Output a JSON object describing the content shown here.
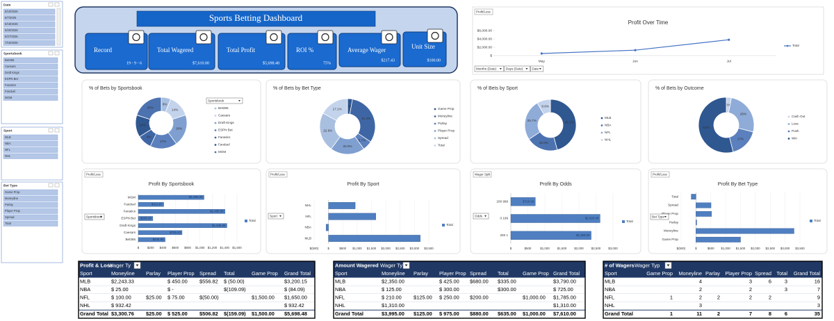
{
  "slicers": [
    {
      "title": "Date",
      "items": [
        "5/10/2025",
        "6/7/2025",
        "6/18/2025",
        "6/20/2025",
        "6/27/2025",
        "7/16/2025"
      ]
    },
    {
      "title": "Sportsbook",
      "items": [
        "Bet365",
        "Caesars",
        "Draft Kings",
        "ESPN Bet",
        "Fanatics",
        "Fanduel",
        "MGM"
      ]
    },
    {
      "title": "Sport",
      "items": [
        "MLB",
        "NBA",
        "NFL",
        "NHL"
      ]
    },
    {
      "title": "Bet Type",
      "items": [
        "Game Prop",
        "Moneyline",
        "Parlay",
        "Player Prop",
        "Spread",
        "Total"
      ]
    }
  ],
  "header": {
    "title": "Sports Betting Dashboard",
    "kpis": [
      {
        "label": "Record",
        "value": "19 - 9 - 6"
      },
      {
        "label": "Total Wagered",
        "value": "$7,610.00"
      },
      {
        "label": "Total Profit",
        "value": "$5,698.48"
      },
      {
        "label": "ROI %",
        "value": "75%"
      },
      {
        "label": "Average Wager",
        "value": "$217.43"
      },
      {
        "label": "Unit Size",
        "value": "$100.00"
      }
    ]
  },
  "chart_data": [
    {
      "type": "line",
      "title": "Profit Over Time",
      "buttons": [
        "Profit/Loss"
      ],
      "filters": [
        "Months (Date)",
        "Days (Date)",
        "Date"
      ],
      "categories": [
        "May",
        "Jun",
        "Jul"
      ],
      "series": [
        {
          "name": "Total",
          "color": "#4472c4",
          "values": [
            500,
            1300,
            3800
          ]
        }
      ],
      "ylim": [
        0,
        6000
      ],
      "yticks": [
        {
          "value": 0,
          "label": "$"
        },
        {
          "value": 2000,
          "label": "$2,000.00"
        },
        {
          "value": 4000,
          "label": "$4,000.00"
        },
        {
          "value": 6000,
          "label": "$6,000.00"
        }
      ]
    },
    {
      "type": "donut",
      "title": "% of Bets by Sportsbook",
      "dropdown": "Sportsbook",
      "categories": [
        "Bet365",
        "Caesars",
        "Draft Kings",
        "ESPN Bet",
        "Fanatics",
        "Fanduel",
        "MGM"
      ],
      "values": [
        6,
        14,
        20,
        17,
        9,
        14,
        20
      ],
      "value_labels": [
        "6%",
        "14%",
        "20%",
        "17%",
        "9%",
        "14%",
        "20%"
      ],
      "colors": [
        "#a9bfe0",
        "#c4d3ec",
        "#7f9fd0",
        "#5b80bd",
        "#3f66a4",
        "#2f5790",
        "#4c72b0"
      ]
    },
    {
      "type": "donut",
      "title": "% of Bets by Bet Type",
      "categories": [
        "Game Prop",
        "Moneyline",
        "Parlay",
        "Player Prop",
        "Spread",
        "Total"
      ],
      "values": [
        2.9,
        31.4,
        5.7,
        20.0,
        22.9,
        17.1
      ],
      "value_labels": [
        "2.9%",
        "31.4%",
        "5.7%",
        "20.0%",
        "22.9%",
        "17.1%"
      ],
      "colors": [
        "#2f5790",
        "#3f66a4",
        "#5b80bd",
        "#7f9fd0",
        "#a9bfe0",
        "#c4d3ec"
      ]
    },
    {
      "type": "donut",
      "title": "% of Bets by Sport",
      "categories": [
        "MLB",
        "NBA",
        "NFL",
        "NHL"
      ],
      "values": [
        45.7,
        20.0,
        25.7,
        8.6
      ],
      "value_labels": [
        "45.7%",
        "20.0%",
        "25.7%",
        "8.6%"
      ],
      "colors": [
        "#2f5790",
        "#4c72b0",
        "#8fabd8",
        "#c4d3ec"
      ]
    },
    {
      "type": "donut",
      "title": "% of Bets by Outcome",
      "categories": [
        "Cash Out",
        "Loss",
        "Push",
        "Win"
      ],
      "values": [
        3,
        26,
        17,
        54
      ],
      "value_labels": [
        "3%",
        "26%",
        "17%",
        "54%"
      ],
      "colors": [
        "#c4d3ec",
        "#8fabd8",
        "#5b80bd",
        "#2f5790"
      ]
    },
    {
      "type": "hbar",
      "title": "Profit By Sportsbook",
      "buttons": [
        "Profit/Loss"
      ],
      "dropdown": "Sportsbook",
      "categories": [
        "MGM",
        "Fanduel",
        "Fanatics",
        "ESPN Bet",
        "Draft Kings",
        "Caesars",
        "Bet365"
      ],
      "series": [
        {
          "name": "Total",
          "color": "#4f7fc0",
          "values": [
            1065.2,
            411.87,
            1405.5,
            235.33,
            1436.55,
            709.23,
            434.8
          ],
          "value_labels": [
            "$1,065.20",
            "$411.87",
            "$1,405.50",
            "$235.33",
            "$1,436.55",
            "$709.23",
            "$434.80"
          ]
        }
      ],
      "xlim": [
        0,
        1600
      ],
      "xticks": [
        {
          "value": 0,
          "label": "$"
        },
        {
          "value": 200,
          "label": "$200"
        },
        {
          "value": 400,
          "label": "$400"
        },
        {
          "value": 600,
          "label": "$600"
        },
        {
          "value": 800,
          "label": "$800"
        },
        {
          "value": 1000,
          "label": "$1,000"
        },
        {
          "value": 1200,
          "label": "$1,200"
        },
        {
          "value": 1400,
          "label": "$1,400"
        },
        {
          "value": 1600,
          "label": "$1,600"
        }
      ],
      "grid": true
    },
    {
      "type": "hbar",
      "title": "Profit By Sport",
      "buttons": [
        "Profit/Loss"
      ],
      "dropdown": "Sport",
      "categories": [
        "NHL",
        "NFL",
        "NBA",
        "MLB"
      ],
      "series": [
        {
          "name": "Total",
          "color": "#4f7fc0",
          "values": [
            932.42,
            1650.0,
            -84.09,
            3200.15
          ]
        }
      ],
      "xlim": [
        -500,
        3500
      ],
      "xticks": [
        {
          "value": -500,
          "label": "$(500)"
        },
        {
          "value": 0,
          "label": "$"
        },
        {
          "value": 500,
          "label": "$500"
        },
        {
          "value": 1000,
          "label": "$1,000"
        },
        {
          "value": 1500,
          "label": "$1,500"
        },
        {
          "value": 2000,
          "label": "$2,000"
        },
        {
          "value": 2500,
          "label": "$2,500"
        },
        {
          "value": 3000,
          "label": "$3,000"
        },
        {
          "value": 3500,
          "label": "$3,500"
        }
      ],
      "grid": true
    },
    {
      "type": "hbar",
      "title": "Profit By Odds",
      "buttons": [
        "Wager Split"
      ],
      "dropdown": "Odds",
      "categories": [
        "200 999",
        "0 199",
        "200 1"
      ],
      "series": [
        {
          "name": "Total",
          "color": "#4f7fc0",
          "values": [
            720.0,
            2620.48,
            2358.0
          ],
          "value_labels": [
            "$720.00",
            "$2,620.48",
            "$2,358.00"
          ]
        }
      ],
      "xlim": [
        0,
        3000
      ],
      "xticks": [
        {
          "value": 0,
          "label": "$"
        },
        {
          "value": 500,
          "label": "$500"
        },
        {
          "value": 1000,
          "label": "$1,000"
        },
        {
          "value": 1500,
          "label": "$1,500"
        },
        {
          "value": 2000,
          "label": "$2,000"
        },
        {
          "value": 2500,
          "label": "$2,500"
        },
        {
          "value": 3000,
          "label": "$3,000"
        }
      ],
      "grid": true
    },
    {
      "type": "hbar",
      "title": "Profit By Bet Type",
      "buttons": [
        "Profit/Loss"
      ],
      "dropdown": "Bet Type",
      "categories": [
        "Total",
        "Spread",
        "Player Prop",
        "Parlay",
        "Moneyline",
        "Game Prop"
      ],
      "series": [
        {
          "name": "Total",
          "color": "#4f7fc0",
          "values": [
            -159.09,
            506.82,
            525.0,
            25.0,
            3300.76,
            1500.0
          ]
        }
      ],
      "xlim": [
        -500,
        3500
      ],
      "xticks": [
        {
          "value": -500,
          "label": "$(500)"
        },
        {
          "value": 0,
          "label": "$"
        },
        {
          "value": 500,
          "label": "$500"
        },
        {
          "value": 1000,
          "label": "$1,000"
        },
        {
          "value": 1500,
          "label": "$1,500"
        },
        {
          "value": 2000,
          "label": "$2,000"
        },
        {
          "value": 2500,
          "label": "$2,500"
        },
        {
          "value": 3000,
          "label": "$3,000"
        },
        {
          "value": 3500,
          "label": "$3,500"
        }
      ],
      "grid": true
    }
  ],
  "tables": [
    {
      "title": "Profit & Loss",
      "filter": "Wager Ty",
      "columns": [
        "Sport",
        "Moneyline",
        "Parlay",
        "Player Prop",
        "Spread",
        "Total",
        "Game Prop",
        "Grand Total"
      ],
      "rows": [
        [
          "MLB",
          "$2,243.33",
          null,
          "$ 450.00",
          "$556.82",
          "$ (50.00)",
          null,
          "$3,200.15"
        ],
        [
          "NBA",
          "$ 25.00",
          null,
          "$ -",
          null,
          "$(109.09)",
          null,
          "$ (84.09)"
        ],
        [
          "NFL",
          "$ 100.00",
          "$25.00",
          "$ 75.00",
          "$(50.00)",
          null,
          "$1,500.00",
          "$1,650.00"
        ],
        [
          "NHL",
          "$ 932.42",
          null,
          null,
          null,
          null,
          null,
          "$ 932.42"
        ],
        [
          "Grand Total",
          "$3,300.76",
          "$25.00",
          "$ 525.00",
          "$506.82",
          "$(159.09)",
          "$1,500.00",
          "$5,698.48"
        ]
      ]
    },
    {
      "title": "Amount Wagered",
      "filter": "Wager Ty",
      "columns": [
        "Sport",
        "Moneyline",
        "Parlay",
        "Player Prop",
        "Spread",
        "Total",
        "Game Prop",
        "Grand Total"
      ],
      "rows": [
        [
          "MLB",
          "$2,350.00",
          null,
          "$ 425.00",
          "$680.00",
          "$335.00",
          null,
          "$3,790.00"
        ],
        [
          "NBA",
          "$ 125.00",
          null,
          "$ 300.00",
          null,
          "$300.00",
          null,
          "$ 725.00"
        ],
        [
          "NFL",
          "$ 210.00",
          "$125.00",
          "$ 250.00",
          "$200.00",
          null,
          "$1,000.00",
          "$1,785.00"
        ],
        [
          "NHL",
          "$1,310.00",
          null,
          null,
          null,
          null,
          null,
          "$1,310.00"
        ],
        [
          "Grand Total",
          "$3,995.00",
          "$125.00",
          "$ 975.00",
          "$880.00",
          "$635.00",
          "$1,000.00",
          "$7,610.00"
        ]
      ]
    },
    {
      "title": "# of Wagers",
      "filter": "Wager Typ",
      "columns": [
        "Sport",
        "Game Prop",
        "Moneyline",
        "Parlay",
        "Player Prop",
        "Spread",
        "Total",
        "Grand Total"
      ],
      "rows": [
        [
          "MLB",
          null,
          "4",
          null,
          "3",
          "6",
          "3",
          "16"
        ],
        [
          "NBA",
          null,
          "2",
          null,
          "2",
          null,
          "3",
          "7"
        ],
        [
          "NFL",
          "1",
          "2",
          "2",
          "2",
          "2",
          null,
          "9"
        ],
        [
          "NHL",
          null,
          "3",
          null,
          null,
          null,
          null,
          "3"
        ],
        [
          "Grand Total",
          "1",
          "11",
          "2",
          "7",
          "8",
          "6",
          "35"
        ]
      ]
    }
  ]
}
